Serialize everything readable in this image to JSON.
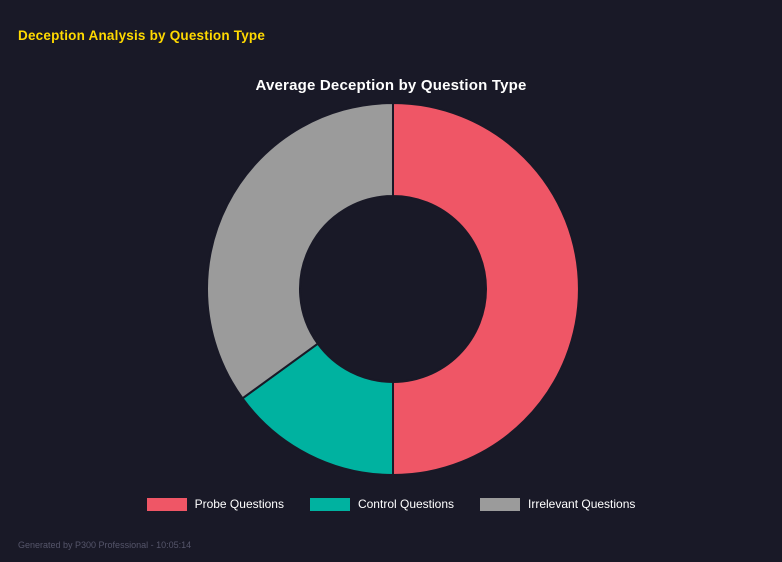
{
  "header": {
    "title": "Deception Analysis by Question Type"
  },
  "chart_data": {
    "type": "pie",
    "subtype": "donut",
    "title": "Average Deception by Question Type",
    "categories": [
      "Probe Questions",
      "Control Questions",
      "Irrelevant Questions"
    ],
    "values": [
      50,
      15,
      35
    ],
    "unit": "% share of arc (estimated from segment angles)",
    "colors": [
      "#ef5666",
      "#00b2a0",
      "#9b9b9b"
    ],
    "legend_position": "bottom",
    "hole_ratio": 0.5,
    "start_angle_deg": 0,
    "direction": "clockwise",
    "background": "#191927"
  },
  "footer": {
    "text": "Generated by P300 Professional - 10:05:14"
  },
  "theme": {
    "background": "#191927",
    "page_title_color": "#ffd900",
    "chart_title_color": "#ffffff",
    "legend_text_color": "#ffffff",
    "footer_text_color": "#55556a"
  }
}
